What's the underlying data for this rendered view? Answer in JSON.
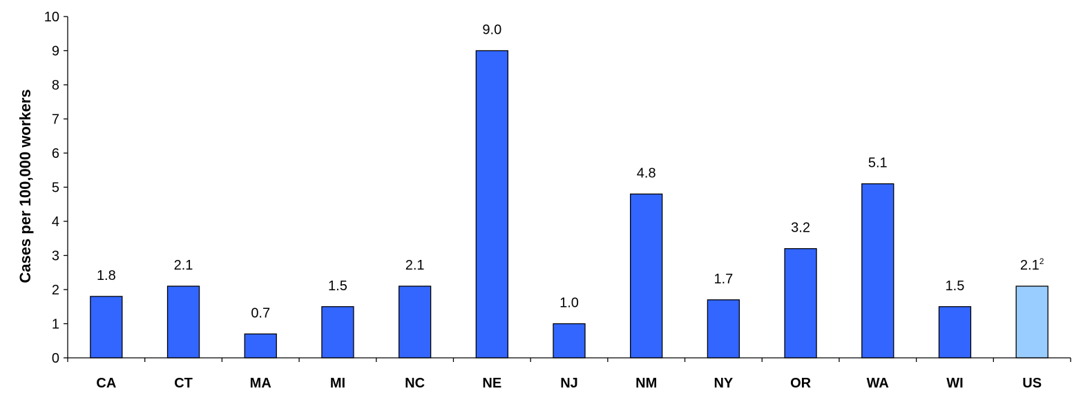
{
  "chart_data": {
    "type": "bar",
    "title": "",
    "xlabel": "",
    "ylabel": "Cases per 100,000 workers",
    "ylim": [
      0,
      10
    ],
    "yticks": [
      0,
      1,
      2,
      3,
      4,
      5,
      6,
      7,
      8,
      9,
      10
    ],
    "grid": false,
    "legend": "none",
    "categories": [
      "CA",
      "CT",
      "MA",
      "MI",
      "NC",
      "NE",
      "NJ",
      "NM",
      "NY",
      "OR",
      "WA",
      "WI",
      "US"
    ],
    "values": [
      1.8,
      2.1,
      0.7,
      1.5,
      2.1,
      9.0,
      1.0,
      4.8,
      1.7,
      3.2,
      5.1,
      1.5,
      2.1
    ],
    "data_labels": [
      "1.8",
      "2.1",
      "0.7",
      "1.5",
      "2.1",
      "9.0",
      "1.0",
      "4.8",
      "1.7",
      "3.2",
      "5.1",
      "1.5",
      "2.1"
    ],
    "footnotes": {
      "US": "2"
    },
    "colors": {
      "bar": "#3366ff",
      "highlight": "#99ccff",
      "highlight_category": "US"
    }
  }
}
